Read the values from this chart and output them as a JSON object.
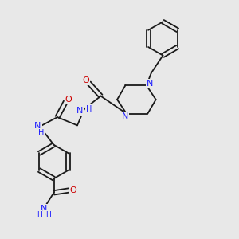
{
  "bg_color": "#e8e8e8",
  "atom_color_N": "#1a1aff",
  "atom_color_O": "#cc0000",
  "bond_color": "#1a1a1a",
  "font_size": 7.5,
  "fig_width": 3.0,
  "fig_height": 3.0,
  "xlim": [
    0,
    10
  ],
  "ylim": [
    0,
    10
  ]
}
